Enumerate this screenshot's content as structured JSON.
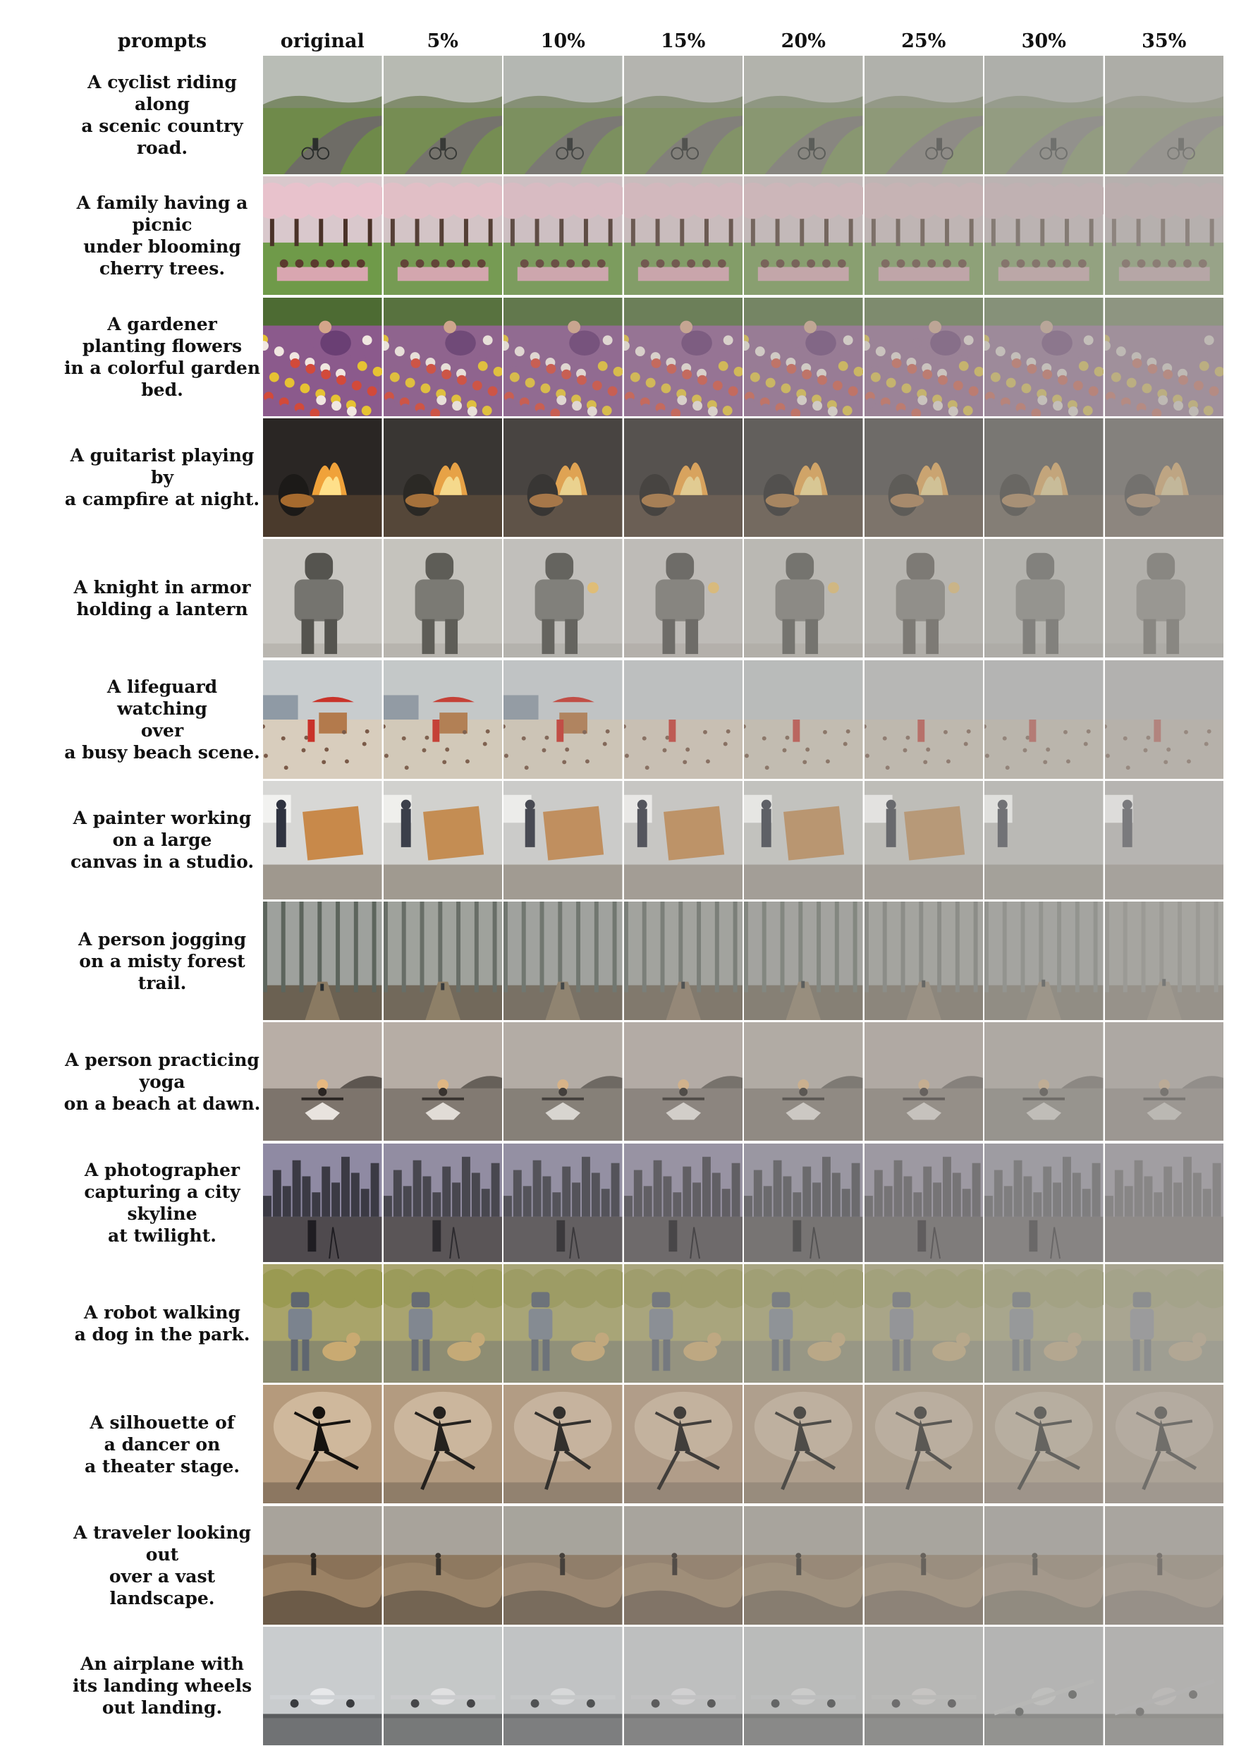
{
  "header": {
    "prompts": "prompts",
    "columns": [
      "original",
      "5%",
      "10%",
      "15%",
      "20%",
      "25%",
      "30%",
      "35%"
    ]
  },
  "rows": [
    {
      "prompt_lines": [
        "A cyclist riding along",
        "a scenic country road."
      ],
      "scene": "cyclist",
      "palette": {
        "sky": "#b9bdb6",
        "ground": "#6f8a4a",
        "accent": "#6e6c66",
        "subject": "#2b2e2c"
      }
    },
    {
      "prompt_lines": [
        "A family having a",
        "picnic",
        "under blooming",
        "cherry trees."
      ],
      "scene": "picnic",
      "palette": {
        "sky": "#d9c8cc",
        "ground": "#6f9a49",
        "accent": "#e8c2cc",
        "subject": "#5b3a2e"
      }
    },
    {
      "prompt_lines": [
        "A gardener",
        "planting flowers",
        "in a colorful garden",
        "bed."
      ],
      "scene": "garden",
      "palette": {
        "sky": "#4d6b33",
        "ground": "#8b5a8c",
        "accent": "#e6c233",
        "subject": "#6a3f74"
      }
    },
    {
      "prompt_lines": [
        "A guitarist playing by",
        "a campfire at night."
      ],
      "scene": "campfire",
      "palette": {
        "sky": "#2a2624",
        "ground": "#4a3a2c",
        "accent": "#f0a23a",
        "subject": "#1c1a18"
      }
    },
    {
      "prompt_lines": [
        "A knight in armor",
        "holding a lantern"
      ],
      "scene": "knight",
      "palette": {
        "sky": "#c9c7c2",
        "ground": "#b9b6b0",
        "accent": "#8a8985",
        "subject": "#55544f"
      }
    },
    {
      "prompt_lines": [
        "A lifeguard watching",
        "over",
        "a busy beach scene."
      ],
      "scene": "beach",
      "palette": {
        "sky": "#c8ccce",
        "ground": "#d8cdbd",
        "accent": "#c9332a",
        "subject": "#7a5a48"
      }
    },
    {
      "prompt_lines": [
        "A painter working",
        "on a large",
        "canvas in a studio."
      ],
      "scene": "studio",
      "palette": {
        "sky": "#d7d7d5",
        "ground": "#9f988e",
        "accent": "#c8894a",
        "subject": "#2f3340"
      }
    },
    {
      "prompt_lines": [
        "A person jogging",
        "on a misty forest trail."
      ],
      "scene": "forest",
      "palette": {
        "sky": "#9ea19d",
        "ground": "#6b6152",
        "accent": "#3f4a42",
        "subject": "#2a2f31"
      }
    },
    {
      "prompt_lines": [
        "A person practicing",
        "yoga",
        "on a beach at dawn."
      ],
      "scene": "yoga",
      "palette": {
        "sky": "#b8aea6",
        "ground": "#7d746c",
        "accent": "#e6b880",
        "subject": "#2a2522"
      }
    },
    {
      "prompt_lines": [
        "A photographer",
        "capturing a city",
        "skyline",
        "at twilight."
      ],
      "scene": "city",
      "palette": {
        "sky": "#8f8aa3",
        "ground": "#4f4a4e",
        "accent": "#3b3a44",
        "subject": "#1f1d22"
      }
    },
    {
      "prompt_lines": [
        "A robot walking",
        "a dog in the park."
      ],
      "scene": "robot",
      "palette": {
        "sky": "#a9a46a",
        "ground": "#8a8a6e",
        "accent": "#c9aa72",
        "subject": "#5f6670"
      }
    },
    {
      "prompt_lines": [
        "A silhouette of",
        "a dancer on",
        "a theater stage."
      ],
      "scene": "dancer",
      "palette": {
        "sky": "#b59a7c",
        "ground": "#8c7761",
        "accent": "#e1cdb3",
        "subject": "#15120f"
      }
    },
    {
      "prompt_lines": [
        "A traveler looking out",
        "over a vast landscape."
      ],
      "scene": "landscape",
      "palette": {
        "sky": "#a8a39b",
        "ground": "#8a7258",
        "accent": "#6c5b48",
        "subject": "#2c2620"
      }
    },
    {
      "prompt_lines": [
        "An airplane with",
        "its landing wheels",
        "out landing."
      ],
      "scene": "airplane",
      "palette": {
        "sky": "#c9ccce",
        "ground": "#707274",
        "accent": "#e7e8ea",
        "subject": "#3a3c3f"
      }
    }
  ]
}
